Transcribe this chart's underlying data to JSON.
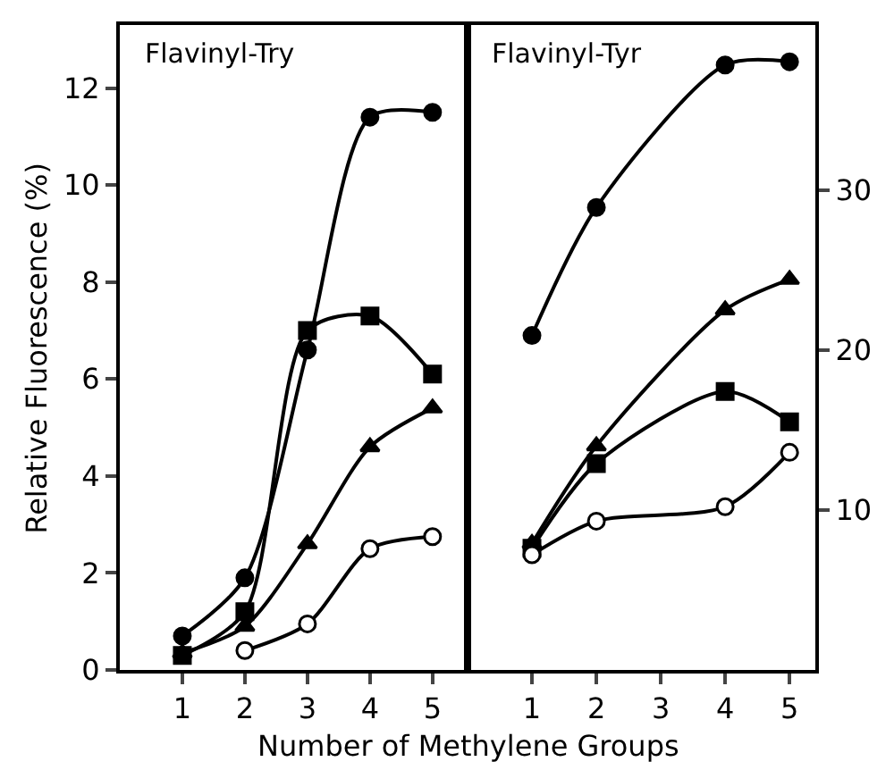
{
  "chart_data": [
    {
      "type": "line",
      "title": "Flavinyl-Try",
      "xlabel": "Number of Methylene Groups",
      "ylabel": "Relative Fluorescence (%)",
      "x": [
        1,
        2,
        3,
        4,
        5
      ],
      "xlim": [
        0,
        5.56
      ],
      "xticks": [
        1,
        2,
        3,
        4,
        5
      ],
      "ylim": [
        0,
        13.3
      ],
      "yticks": [
        0,
        2,
        4,
        6,
        8,
        10,
        12
      ],
      "series": [
        {
          "color": "#000000",
          "marker": "circle",
          "values": [
            0.7,
            1.9,
            6.6,
            11.4,
            11.5
          ]
        },
        {
          "color": "#000000",
          "marker": "triangle",
          "values": [
            0.35,
            0.9,
            2.6,
            4.6,
            5.4
          ]
        },
        {
          "color": "#000000",
          "marker": "square",
          "values": [
            0.3,
            1.2,
            7.0,
            7.3,
            6.1
          ]
        },
        {
          "color": "#000000",
          "colors": [
            "#ffffff",
            "#ffffff",
            "#ffffff",
            "#ffffff",
            "#ffffff"
          ],
          "marker": "circle",
          "values": [
            null,
            0.4,
            0.95,
            2.5,
            2.75
          ]
        }
      ]
    },
    {
      "type": "line",
      "title": "Flavinyl-Tyr",
      "x": [
        1,
        2,
        4,
        5
      ],
      "xlim": [
        0,
        5.4
      ],
      "xticks": [
        1,
        2,
        3,
        4,
        5
      ],
      "ylim": [
        0,
        40.3
      ],
      "yticks": [
        10,
        20,
        30
      ],
      "series": [
        {
          "color": "#000000",
          "marker": "circle",
          "values": [
            20.9,
            28.9,
            37.8,
            38.0
          ]
        },
        {
          "color": "#000000",
          "marker": "triangle",
          "values": [
            7.9,
            14.0,
            22.5,
            24.4
          ]
        },
        {
          "color": "#000000",
          "marker": "square",
          "values": [
            7.6,
            12.9,
            17.4,
            15.5
          ]
        },
        {
          "color": "#000000",
          "colors": [
            "#ffffff",
            "#ffffff",
            "#ffffff",
            "#ffffff"
          ],
          "marker": "circle",
          "values": [
            7.2,
            9.3,
            10.2,
            13.6
          ]
        }
      ]
    }
  ]
}
